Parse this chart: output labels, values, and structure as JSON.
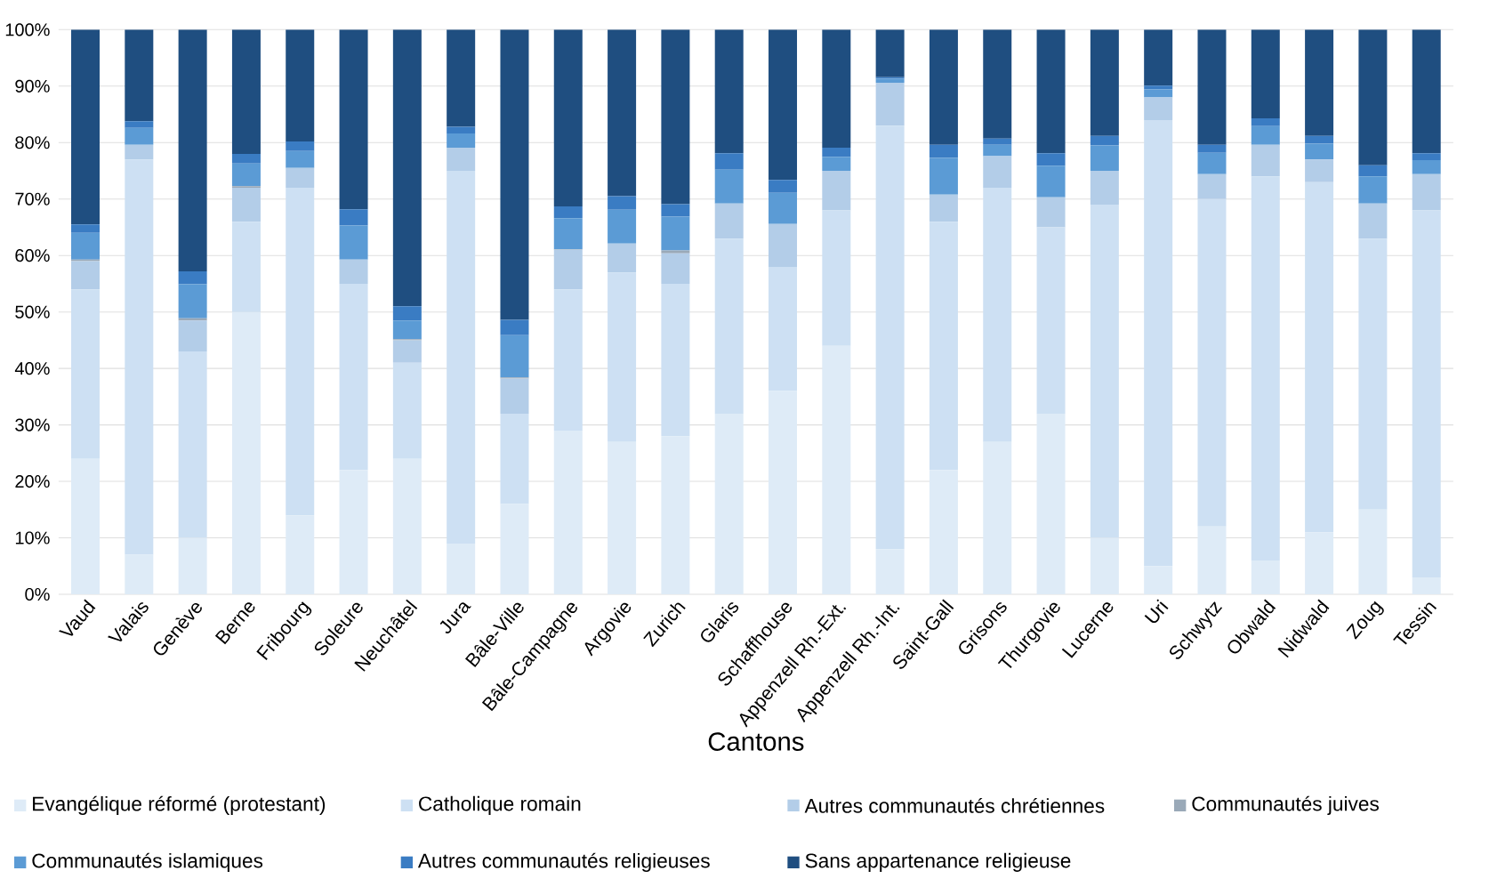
{
  "chart_data": {
    "type": "bar",
    "stacked": true,
    "xlabel": "Cantons",
    "categories": [
      "Vaud",
      "Valais",
      "Genève",
      "Berne",
      "Fribourg",
      "Soleure",
      "Neuchâtel",
      "Jura",
      "Bâle-Ville",
      "Bâle-Campagne",
      "Argovie",
      "Zurich",
      "Glaris",
      "Schaffhouse",
      "Appenzell Rh.-Ext.",
      "Appenzell Rh.-Int.",
      "Saint-Gall",
      "Grisons",
      "Thurgovie",
      "Lucerne",
      "Uri",
      "Schwytz",
      "Obwald",
      "Nidwald",
      "Zoug",
      "Tessin"
    ],
    "series": [
      {
        "name": "Evangélique réformé (protestant)",
        "color": "#deebf7",
        "values": [
          24,
          7,
          10,
          50,
          14,
          22,
          24,
          9,
          16,
          29,
          27,
          28,
          32,
          36,
          44,
          8,
          22,
          27,
          32,
          10,
          5,
          12,
          6,
          11,
          15,
          3
        ]
      },
      {
        "name": "Catholique romain",
        "color": "#cde0f3",
        "values": [
          30,
          70,
          33,
          16,
          58,
          33,
          17,
          66,
          16,
          25,
          30,
          27,
          31,
          22,
          24,
          75,
          44,
          45,
          33,
          59,
          79,
          58,
          68,
          62,
          48,
          65
        ]
      },
      {
        "name": "Autres communautés chrétiennes",
        "color": "#b3cde8",
        "values": [
          5,
          2.6,
          5.5,
          6,
          3.5,
          4.3,
          4,
          4.1,
          6.2,
          7,
          5.1,
          5.4,
          6.2,
          7.6,
          7,
          7.6,
          4.8,
          5.6,
          5.3,
          6,
          4,
          4.4,
          5.6,
          4,
          6.2,
          6.4
        ]
      },
      {
        "name": "Communautés juives",
        "color": "#9aa9b8",
        "values": [
          0.3,
          0,
          0.4,
          0.3,
          0,
          0,
          0.2,
          0,
          0.2,
          0.1,
          0,
          0.5,
          0,
          0,
          0,
          0,
          0,
          0,
          0,
          0,
          0,
          0,
          0,
          0,
          0,
          0
        ]
      },
      {
        "name": "Communautés islamiques",
        "color": "#5b9bd5",
        "values": [
          4.7,
          3,
          6,
          4,
          3,
          6,
          3.3,
          2.5,
          7.5,
          5.5,
          6,
          6,
          6,
          5.5,
          2.5,
          0.7,
          6.5,
          2,
          5.6,
          4.5,
          1.4,
          3.8,
          3.3,
          2.8,
          4.8,
          2.5
        ]
      },
      {
        "name": "Autres communautés religieuses",
        "color": "#3a7cc3",
        "values": [
          1.5,
          1.2,
          2.3,
          1.7,
          1.7,
          2.9,
          2.5,
          1.2,
          2.7,
          2.1,
          2.4,
          2.2,
          2.9,
          2.3,
          1.6,
          0.3,
          2.3,
          1.1,
          2.2,
          1.7,
          0.7,
          1.4,
          1.4,
          1.4,
          2,
          1.2
        ]
      },
      {
        "name": "Sans appartenance religieuse",
        "color": "#1f4e80",
        "values": [
          34.5,
          16.2,
          42.8,
          22,
          19.8,
          31.8,
          49,
          17.2,
          51.4,
          31.3,
          29.5,
          30.9,
          21.9,
          26.6,
          20.9,
          8.4,
          20.4,
          19.3,
          21.9,
          18.8,
          9.9,
          20.4,
          15.7,
          18.8,
          24,
          21.9
        ]
      }
    ],
    "ylim": [
      0,
      100
    ],
    "yticks": [
      {
        "value": 0,
        "label": "0%"
      },
      {
        "value": 10,
        "label": "10%"
      },
      {
        "value": 20,
        "label": "20%"
      },
      {
        "value": 30,
        "label": "30%"
      },
      {
        "value": 40,
        "label": "40%"
      },
      {
        "value": 50,
        "label": "50%"
      },
      {
        "value": 60,
        "label": "60%"
      },
      {
        "value": 70,
        "label": "70%"
      },
      {
        "value": 80,
        "label": "80%"
      },
      {
        "value": 90,
        "label": "90%"
      },
      {
        "value": 100,
        "label": "100%"
      }
    ],
    "grid": "y",
    "legend": "bottom"
  }
}
